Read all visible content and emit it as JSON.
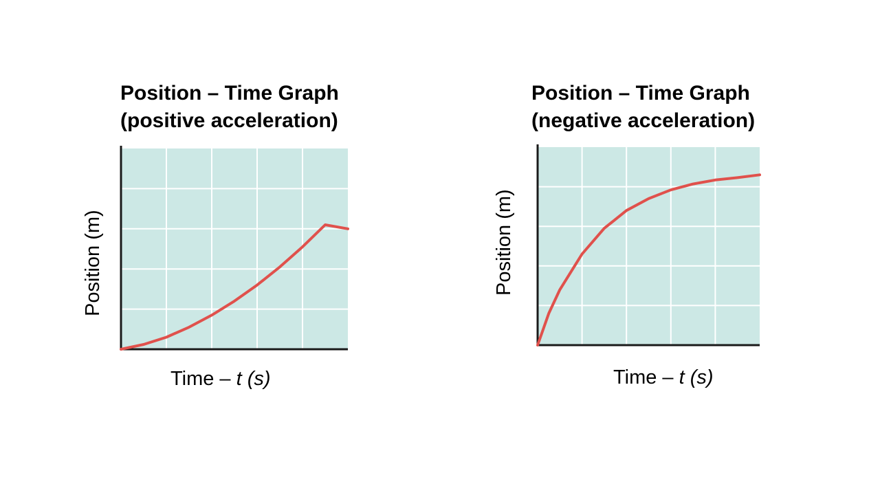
{
  "chart_data": [
    {
      "type": "line",
      "title_lines": [
        "Position – Time Graph",
        "(positive acceleration)"
      ],
      "xlabel_prefix": "Time – ",
      "xlabel_var": "t",
      "xlabel_unit": "(s)",
      "ylabel": "Position (m)",
      "grid": true,
      "xlim": [
        0,
        5
      ],
      "ylim": [
        0,
        5
      ],
      "series": [
        {
          "x": [
            0,
            0.5,
            1,
            1.5,
            2,
            2.5,
            3,
            3.5,
            4,
            4.5,
            5
          ],
          "y": [
            0,
            0.12,
            0.3,
            0.55,
            0.85,
            1.2,
            1.6,
            2.05,
            2.55,
            3.1,
            3.0
          ]
        }
      ],
      "colors": {
        "plot_bg": "#cce8e5",
        "grid": "#ffffff",
        "line": "#e0514c",
        "axis": "#1a1a1a"
      }
    },
    {
      "type": "line",
      "title_lines": [
        "Position – Time Graph",
        "(negative acceleration)"
      ],
      "xlabel_prefix": "Time – ",
      "xlabel_var": "t",
      "xlabel_unit": "(s)",
      "ylabel": "Position (m)",
      "grid": true,
      "xlim": [
        0,
        5
      ],
      "ylim": [
        0,
        5
      ],
      "series": [
        {
          "x": [
            0,
            0.25,
            0.5,
            1,
            1.5,
            2,
            2.5,
            3,
            3.5,
            4,
            4.5,
            5
          ],
          "y": [
            0,
            0.8,
            1.4,
            2.3,
            2.95,
            3.4,
            3.7,
            3.92,
            4.07,
            4.17,
            4.23,
            4.3
          ]
        }
      ],
      "colors": {
        "plot_bg": "#cce8e5",
        "grid": "#ffffff",
        "line": "#e0514c",
        "axis": "#1a1a1a"
      }
    }
  ]
}
